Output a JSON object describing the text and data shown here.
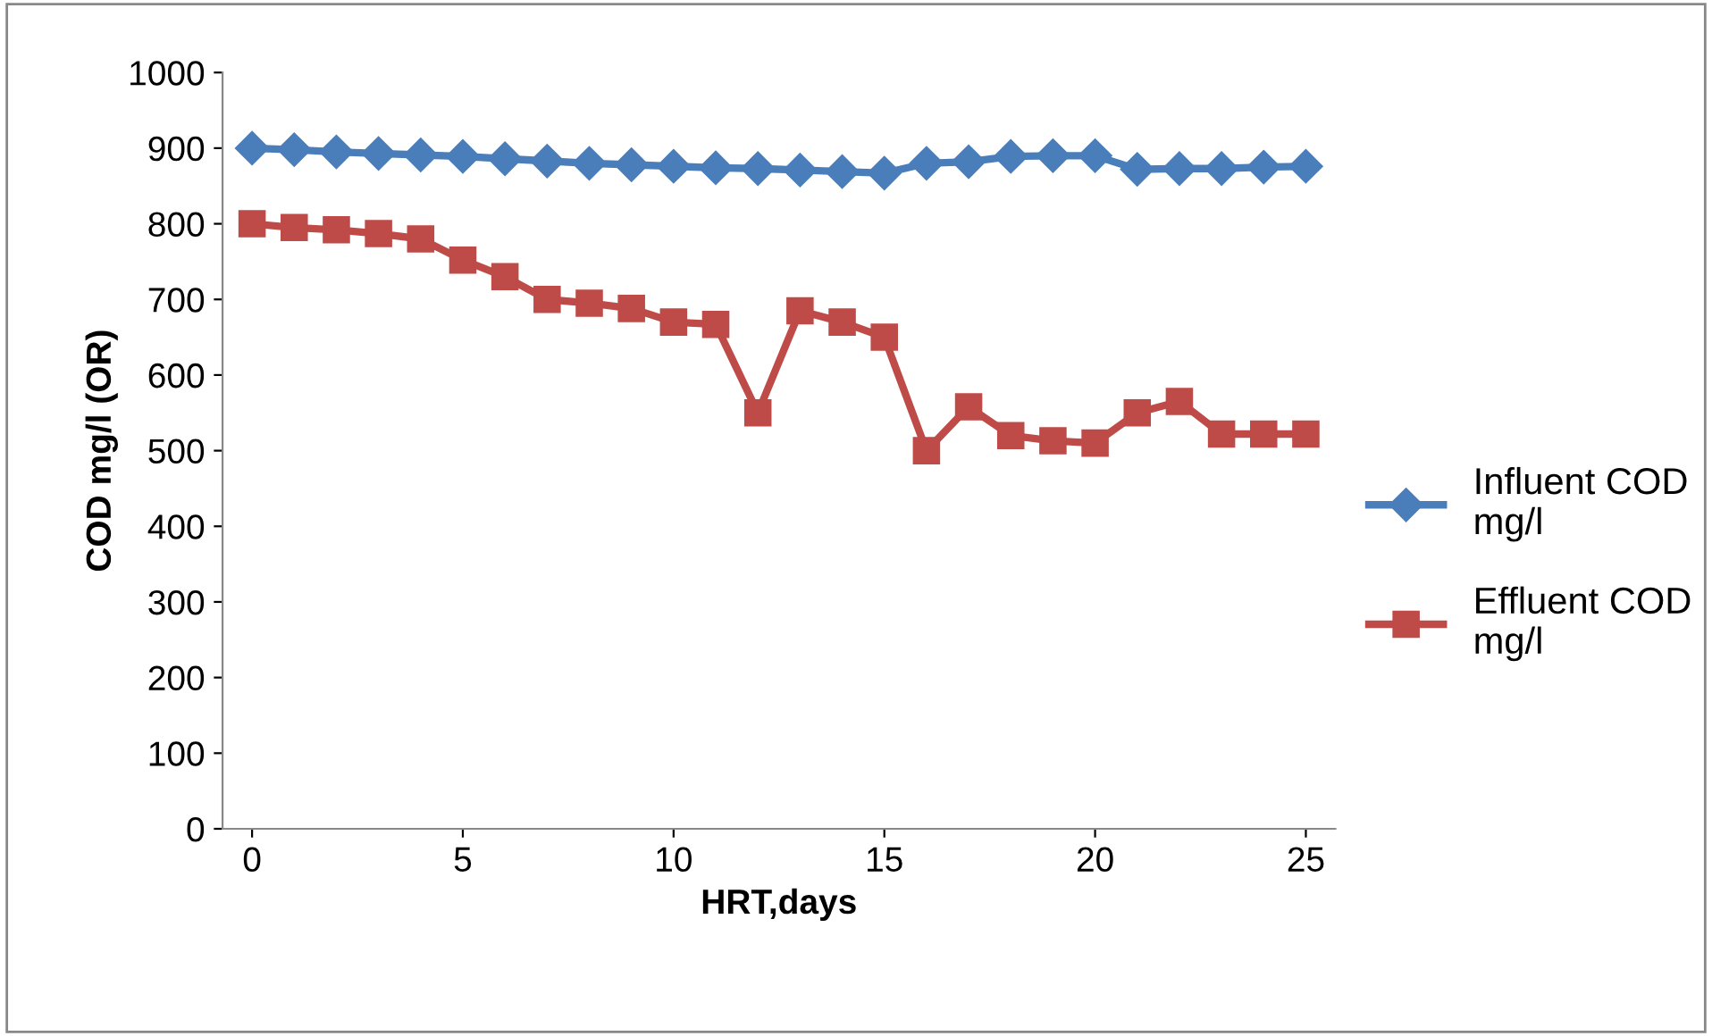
{
  "chart_data": {
    "type": "line",
    "xlabel": "HRT,days",
    "ylabel": "COD mg/l (OR)",
    "x": [
      0,
      1,
      2,
      3,
      4,
      5,
      6,
      7,
      8,
      9,
      10,
      11,
      12,
      13,
      14,
      15,
      16,
      17,
      18,
      19,
      20,
      21,
      22,
      23,
      24,
      25
    ],
    "series": [
      {
        "name": "Influent COD mg/l",
        "color": "#4a7ebb",
        "marker": "diamond",
        "values": [
          900,
          898,
          895,
          893,
          891,
          889,
          886,
          883,
          880,
          878,
          876,
          874,
          873,
          871,
          869,
          867,
          880,
          882,
          889,
          890,
          890,
          872,
          873,
          873,
          875,
          876
        ]
      },
      {
        "name": "Effluent COD mg/l",
        "color": "#be4b48",
        "marker": "square",
        "values": [
          800,
          795,
          792,
          787,
          780,
          752,
          730,
          700,
          695,
          688,
          670,
          667,
          550,
          685,
          670,
          650,
          500,
          558,
          520,
          513,
          510,
          550,
          565,
          522,
          522,
          522
        ]
      }
    ],
    "xlim": [
      -0.7,
      25.7
    ],
    "xticks": [
      0,
      5,
      10,
      15,
      20,
      25
    ],
    "ylim": [
      0,
      1000
    ],
    "yticks": [
      0,
      100,
      200,
      300,
      400,
      500,
      600,
      700,
      800,
      900,
      1000
    ],
    "grid": false,
    "legend": "right",
    "line_style": "solid"
  }
}
